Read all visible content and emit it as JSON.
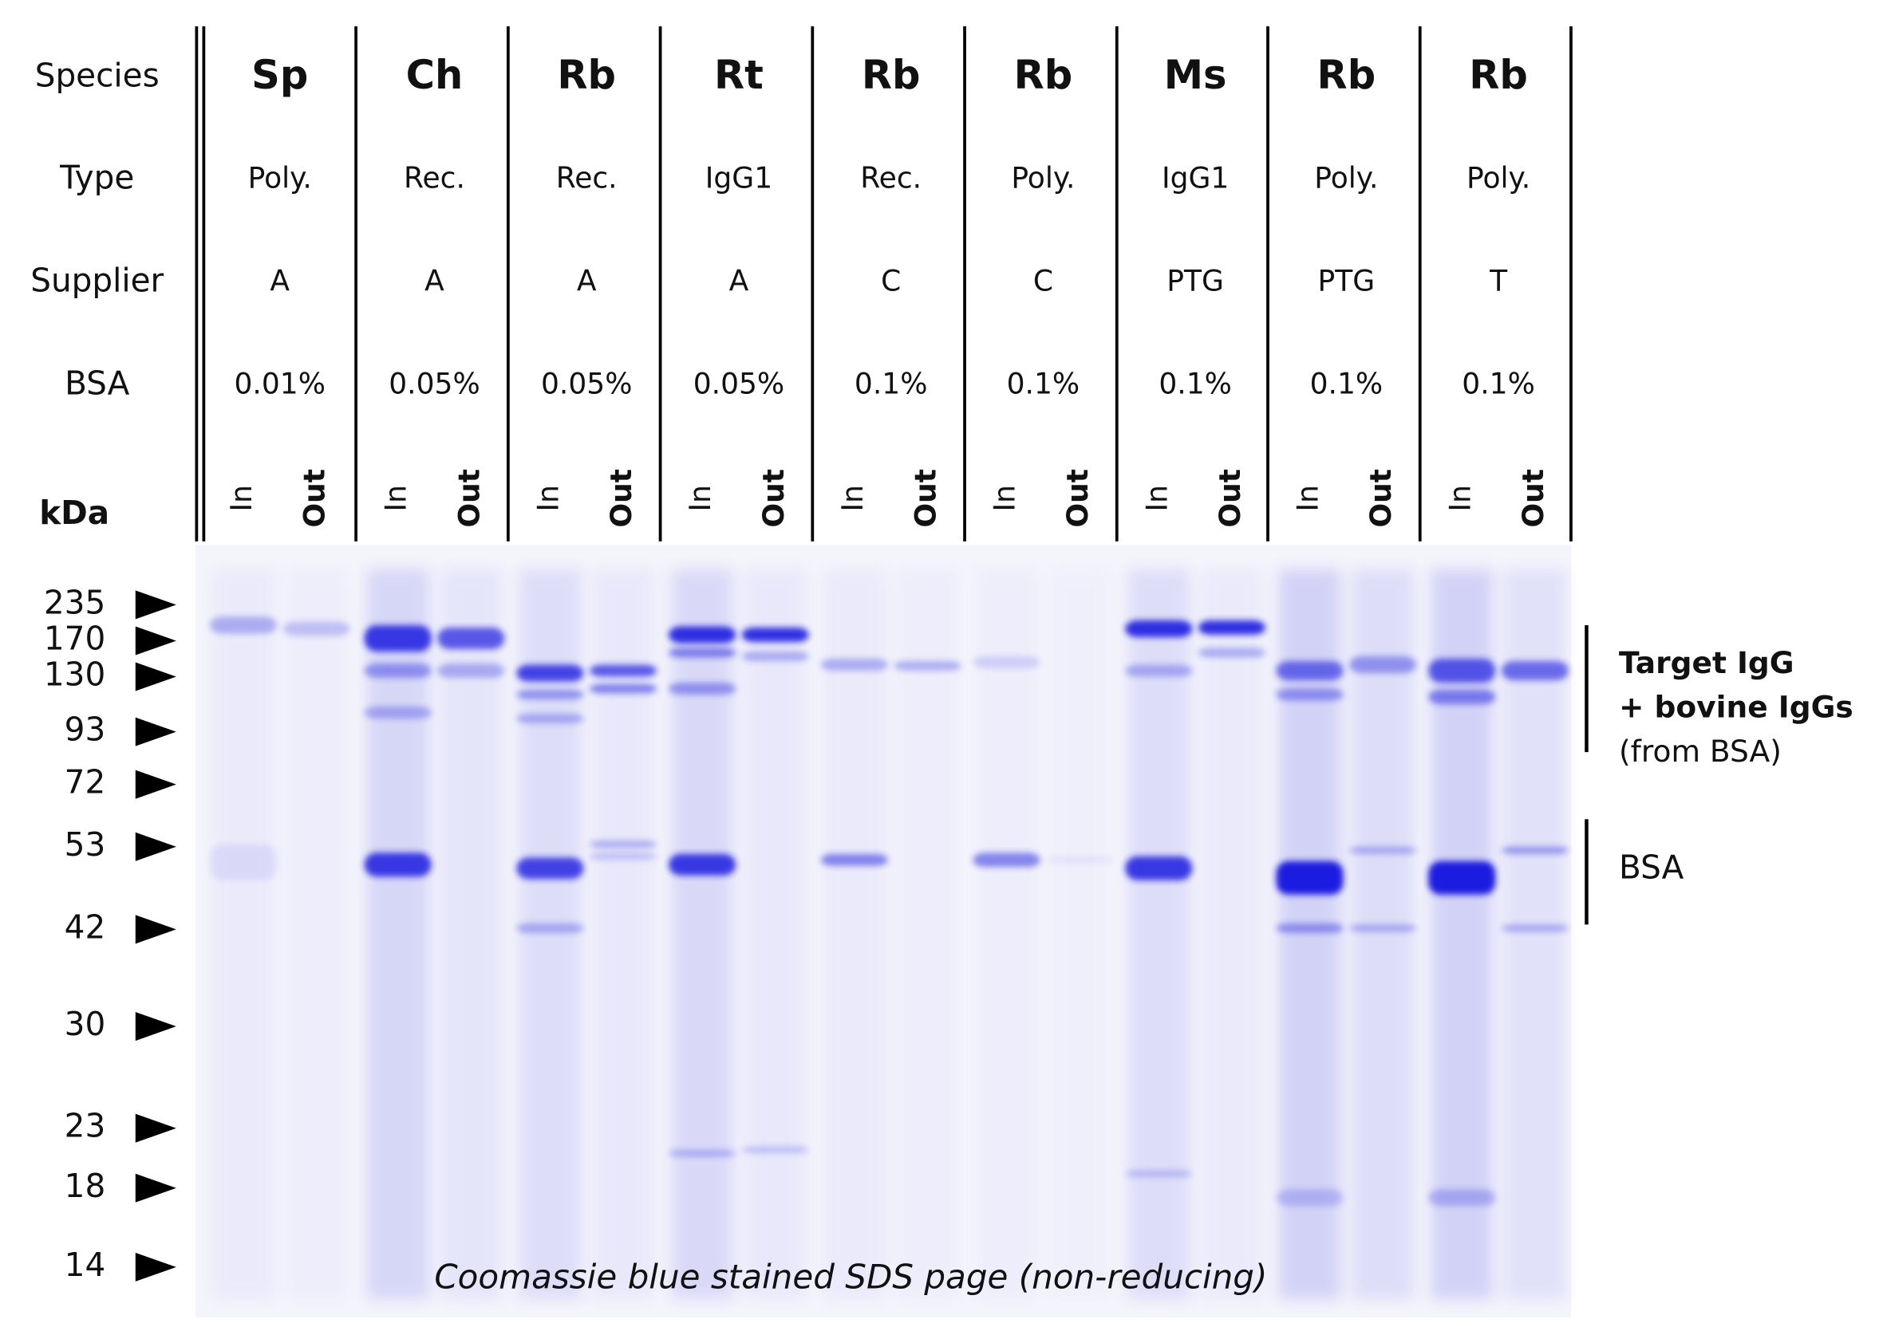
{
  "header": {
    "row_labels": [
      "Species",
      "Type",
      "Supplier",
      "BSA"
    ],
    "kda_label": "kDa"
  },
  "lanes": [
    {
      "species": "Sp",
      "type": "Poly.",
      "supplier": "A",
      "bsa": "0.01%",
      "in": "In",
      "out": "Out"
    },
    {
      "species": "Ch",
      "type": "Rec.",
      "supplier": "A",
      "bsa": "0.05%",
      "in": "In",
      "out": "Out"
    },
    {
      "species": "Rb",
      "type": "Rec.",
      "supplier": "A",
      "bsa": "0.05%",
      "in": "In",
      "out": "Out"
    },
    {
      "species": "Rt",
      "type": "IgG1",
      "supplier": "A",
      "bsa": "0.05%",
      "in": "In",
      "out": "Out"
    },
    {
      "species": "Rb",
      "type": "Rec.",
      "supplier": "C",
      "bsa": "0.1%",
      "in": "In",
      "out": "Out"
    },
    {
      "species": "Rb",
      "type": "Poly.",
      "supplier": "C",
      "bsa": "0.1%",
      "in": "In",
      "out": "Out"
    },
    {
      "species": "Ms",
      "type": "IgG1",
      "supplier": "PTG",
      "bsa": "0.1%",
      "in": "In",
      "out": "Out"
    },
    {
      "species": "Rb",
      "type": "Poly.",
      "supplier": "PTG",
      "bsa": "0.1%",
      "in": "In",
      "out": "Out"
    },
    {
      "species": "Rb",
      "type": "Poly.",
      "supplier": "T",
      "bsa": "0.1%",
      "in": "In",
      "out": "Out"
    }
  ],
  "markers": [
    "235",
    "170",
    "130",
    "93",
    "72",
    "53",
    "42",
    "30",
    "23",
    "18",
    "14"
  ],
  "annotations": [
    {
      "lines": [
        "Target IgG",
        "+ bovine IgGs",
        "(from BSA)"
      ]
    },
    {
      "lines": [
        "BSA"
      ]
    }
  ],
  "caption": "Coomassie blue stained SDS page (non-reducing)"
}
